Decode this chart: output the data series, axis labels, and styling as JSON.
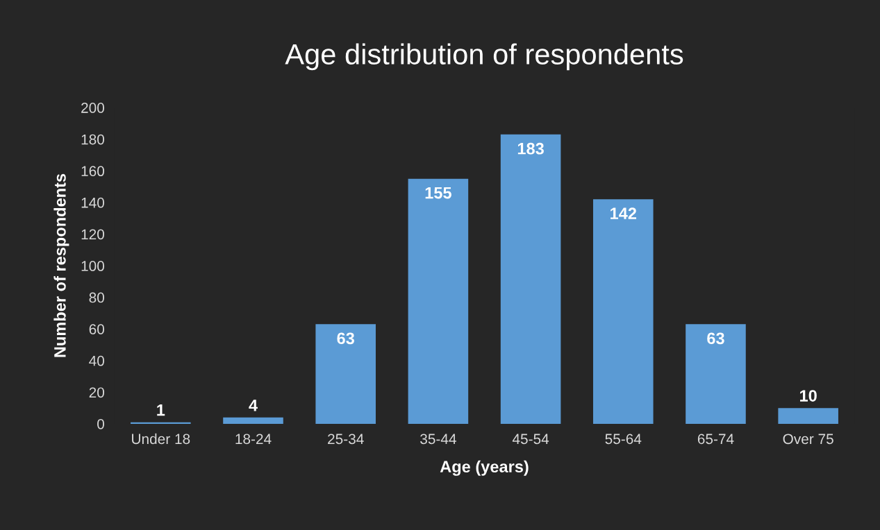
{
  "chart_data": {
    "type": "bar",
    "title": "Age distribution of respondents",
    "xlabel": "Age (years)",
    "ylabel": "Number of respondents",
    "categories": [
      "Under 18",
      "18-24",
      "25-34",
      "35-44",
      "45-54",
      "55-64",
      "65-74",
      "Over 75"
    ],
    "values": [
      1,
      4,
      63,
      155,
      183,
      142,
      63,
      10
    ],
    "color": "#5b9bd5",
    "ylim": [
      0,
      200
    ],
    "yticks": [
      0,
      20,
      40,
      60,
      80,
      100,
      120,
      140,
      160,
      180,
      200
    ],
    "grid": false,
    "data_labels": true
  }
}
